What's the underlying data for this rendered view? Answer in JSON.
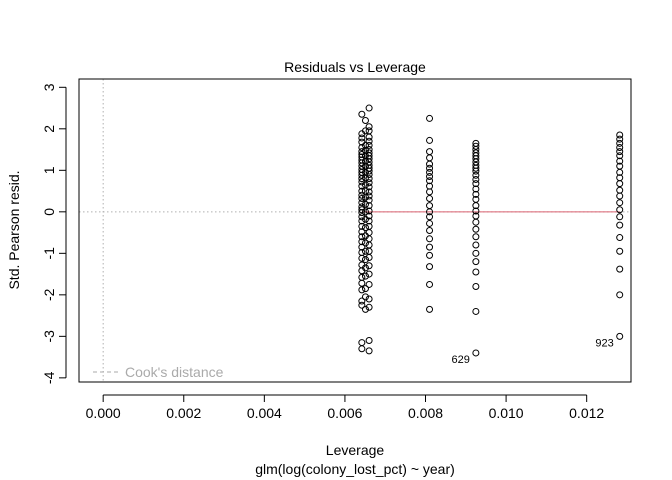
{
  "chart_data": {
    "type": "scatter",
    "title": "Residuals vs Leverage",
    "xlabel": "Leverage",
    "subtitle": "glm(log(colony_lost_pct) ~ year)",
    "ylabel": "Std. Pearson resid.",
    "xlim": [
      -0.0006,
      0.0131
    ],
    "ylim": [
      -4.1,
      3.2
    ],
    "x_ticks": [
      {
        "value": 0.0,
        "label": "0.000"
      },
      {
        "value": 0.002,
        "label": "0.002"
      },
      {
        "value": 0.004,
        "label": "0.004"
      },
      {
        "value": 0.006,
        "label": "0.006"
      },
      {
        "value": 0.008,
        "label": "0.008"
      },
      {
        "value": 0.01,
        "label": "0.010"
      },
      {
        "value": 0.012,
        "label": "0.012"
      }
    ],
    "y_ticks": [
      {
        "value": -4,
        "label": "-4"
      },
      {
        "value": -3,
        "label": "-3"
      },
      {
        "value": -2,
        "label": "-2"
      },
      {
        "value": -1,
        "label": "-1"
      },
      {
        "value": 0,
        "label": "0"
      },
      {
        "value": 1,
        "label": "1"
      },
      {
        "value": 2,
        "label": "2"
      },
      {
        "value": 3,
        "label": "3"
      }
    ],
    "reference_lines": {
      "y": 0,
      "x": 0
    },
    "smooth_line_color": "#d9606f",
    "legend": {
      "label": "Cook's distance",
      "position": "bottom-left",
      "color": "#aaaaaa"
    },
    "series": [
      {
        "x": 0.00642,
        "y": [
          2.35,
          1.88,
          1.78,
          1.68,
          1.55,
          1.45,
          1.38,
          1.32,
          1.25,
          1.18,
          1.1,
          1.02,
          0.95,
          0.88,
          0.8,
          0.72,
          0.62,
          0.5,
          0.4,
          0.32,
          0.22,
          0.12,
          0.05,
          -0.02,
          -0.12,
          -0.22,
          -0.35,
          -0.48,
          -0.6,
          -0.72,
          -0.85,
          -0.98,
          -1.12,
          -1.28,
          -1.42,
          -1.58,
          -1.72,
          -1.88,
          -2.15,
          -2.25,
          -3.15,
          -3.3
        ]
      },
      {
        "x": 0.00651,
        "y": [
          2.2,
          1.95,
          1.6,
          1.48,
          1.35,
          1.22,
          1.1,
          0.95,
          0.82,
          0.65,
          0.5,
          0.35,
          0.18,
          0.0,
          -0.18,
          -0.38,
          -0.58,
          -0.75,
          -0.95,
          -1.15,
          -1.35,
          -1.55,
          -1.85,
          -2.05,
          -2.35
        ]
      },
      {
        "x": 0.0066,
        "y": [
          2.5,
          2.05,
          1.95,
          1.8,
          1.7,
          1.6,
          1.5,
          1.42,
          1.35,
          1.28,
          1.2,
          1.12,
          1.05,
          0.98,
          0.9,
          0.8,
          0.7,
          0.6,
          0.48,
          0.38,
          0.28,
          0.15,
          0.02,
          -0.1,
          -0.22,
          -0.35,
          -0.5,
          -0.65,
          -0.8,
          -0.95,
          -1.1,
          -1.3,
          -1.5,
          -1.75,
          -2.1,
          -2.3,
          -3.1,
          -3.35
        ]
      },
      {
        "x": 0.0081,
        "y": [
          2.25,
          1.72,
          1.45,
          1.3,
          1.15,
          1.05,
          0.95,
          0.85,
          0.75,
          0.62,
          0.48,
          0.32,
          0.15,
          0.0,
          -0.12,
          -0.28,
          -0.45,
          -0.65,
          -0.85,
          -1.05,
          -1.32,
          -1.75,
          -2.35
        ]
      },
      {
        "x": 0.00925,
        "y": [
          1.65,
          1.58,
          1.5,
          1.42,
          1.35,
          1.28,
          1.2,
          1.12,
          1.05,
          0.98,
          0.88,
          0.78,
          0.68,
          0.55,
          0.42,
          0.3,
          0.15,
          0.02,
          -0.1,
          -0.25,
          -0.42,
          -0.6,
          -0.8,
          -1.0,
          -1.2,
          -1.45,
          -1.8,
          -2.4,
          -3.4
        ]
      },
      {
        "x": 0.01282,
        "y": [
          1.85,
          1.75,
          1.65,
          1.55,
          1.45,
          1.35,
          1.22,
          1.1,
          0.95,
          0.82,
          0.68,
          0.52,
          0.38,
          0.22,
          0.05,
          -0.12,
          -0.32,
          -0.62,
          -0.95,
          -1.38,
          -2.0,
          -3.0
        ]
      }
    ],
    "point_labels": [
      {
        "text": "629",
        "x": 0.00925,
        "y": -3.4,
        "side": "left"
      },
      {
        "text": "923",
        "x": 0.01282,
        "y": -3.0,
        "side": "left"
      }
    ]
  }
}
